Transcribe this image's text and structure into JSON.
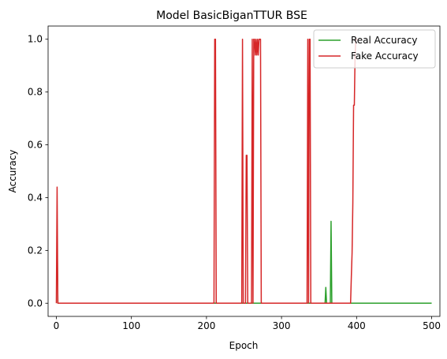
{
  "chart_data": {
    "type": "line",
    "title": "Model BasicBiganTTUR BSE",
    "xlabel": "Epoch",
    "ylabel": "Accuracy",
    "xlim": [
      -11,
      511
    ],
    "ylim": [
      -0.05,
      1.05
    ],
    "xticks": [
      0,
      100,
      200,
      300,
      400,
      500
    ],
    "yticks": [
      0.0,
      0.2,
      0.4,
      0.6,
      0.8,
      1.0
    ],
    "ytick_labels": [
      "0.0",
      "0.2",
      "0.4",
      "0.6",
      "0.8",
      "1.0"
    ],
    "grid": false,
    "legend_position": "upper right",
    "series": [
      {
        "name": "Real Accuracy",
        "color": "#2ca02c",
        "x": [
          0,
          1,
          2,
          357,
          358,
          359,
          360,
          365,
          366,
          367,
          368,
          500
        ],
        "y": [
          0.25,
          0.25,
          0.0,
          0.0,
          0.0,
          0.06,
          0.0,
          0.0,
          0.31,
          0.0,
          0.0,
          0.0
        ]
      },
      {
        "name": "Fake Accuracy",
        "color": "#d62728",
        "x": [
          0,
          1,
          2,
          210,
          211,
          212,
          213,
          247,
          248,
          249,
          252,
          253,
          254,
          255,
          260,
          261,
          262,
          263,
          264,
          265,
          266,
          267,
          268,
          269,
          270,
          271,
          272,
          273,
          334,
          335,
          336,
          337,
          338,
          339,
          392,
          393,
          394,
          395,
          396,
          397,
          398,
          399,
          400,
          401
        ],
        "y": [
          0.0,
          0.44,
          0.0,
          0.0,
          1.0,
          1.0,
          0.0,
          0.0,
          1.0,
          0.0,
          0.0,
          0.56,
          0.56,
          0.0,
          0.0,
          1.0,
          0.0,
          1.0,
          1.0,
          0.94,
          1.0,
          0.94,
          1.0,
          0.94,
          1.0,
          1.0,
          1.0,
          0.0,
          0.0,
          1.0,
          0.0,
          1.0,
          1.0,
          0.0,
          0.0,
          0.1,
          0.19,
          0.38,
          0.75,
          0.75,
          0.94,
          1.0,
          1.0,
          1.0
        ]
      }
    ]
  }
}
